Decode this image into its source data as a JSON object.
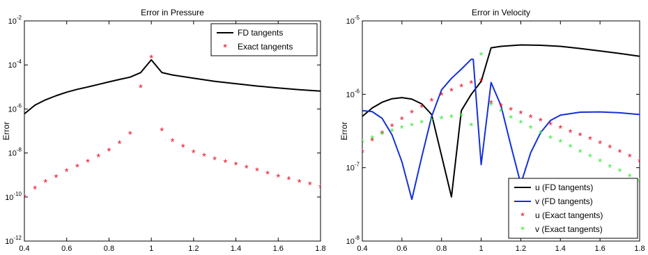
{
  "chart_data": [
    {
      "type": "line",
      "title": "Error in Pressure",
      "xlabel": "",
      "ylabel": "Error",
      "xlim": [
        0.4,
        1.8
      ],
      "ylim": [
        1e-12,
        0.01
      ],
      "yscale": "log",
      "grid": false,
      "legend_position": "top-right",
      "x_ticks": [
        "0.4",
        "0.6",
        "0.8",
        "1",
        "1.2",
        "1.4",
        "1.6",
        "1.8"
      ],
      "y_ticks": [
        {
          "base": "10",
          "exp": "-12"
        },
        {
          "base": "10",
          "exp": "-10"
        },
        {
          "base": "10",
          "exp": "-8"
        },
        {
          "base": "10",
          "exp": "-6"
        },
        {
          "base": "10",
          "exp": "-4"
        },
        {
          "base": "10",
          "exp": "-2"
        }
      ],
      "series": [
        {
          "name": "FD tangents",
          "style": "line",
          "color": "#000000",
          "x": [
            0.4,
            0.45,
            0.5,
            0.55,
            0.6,
            0.65,
            0.7,
            0.75,
            0.8,
            0.85,
            0.9,
            0.95,
            1.0,
            1.05,
            1.1,
            1.2,
            1.3,
            1.4,
            1.5,
            1.6,
            1.7,
            1.8
          ],
          "y": [
            6e-07,
            1.5e-06,
            2.6e-06,
            4e-06,
            5.8e-06,
            7.8e-06,
            1e-05,
            1.3e-05,
            1.7e-05,
            2.2e-05,
            2.8e-05,
            4.5e-05,
            0.00017,
            4.5e-05,
            3.5e-05,
            2.5e-05,
            1.8e-05,
            1.4e-05,
            1.1e-05,
            9e-06,
            7.5e-06,
            6.5e-06
          ]
        },
        {
          "name": "Exact tangents",
          "style": "marker",
          "color": "#e8102a",
          "x": [
            0.4,
            0.45,
            0.5,
            0.55,
            0.6,
            0.65,
            0.7,
            0.75,
            0.8,
            0.85,
            0.9,
            0.95,
            1.0,
            1.05,
            1.1,
            1.15,
            1.2,
            1.25,
            1.3,
            1.35,
            1.4,
            1.45,
            1.5,
            1.55,
            1.6,
            1.65,
            1.7,
            1.75,
            1.8
          ],
          "y": [
            1e-10,
            2.3e-10,
            4.5e-10,
            7.5e-10,
            1.4e-09,
            2.3e-09,
            3.8e-09,
            6.5e-09,
            1.2e-08,
            2.6e-08,
            7e-08,
            9e-06,
            0.0002,
            1e-07,
            3.2e-08,
            1.8e-08,
            1e-08,
            7e-09,
            4.8e-09,
            3.6e-09,
            2.8e-09,
            2e-09,
            1.5e-09,
            1.1e-09,
            8e-10,
            6e-10,
            4.5e-10,
            3.5e-10,
            2.6e-10
          ]
        }
      ]
    },
    {
      "type": "line",
      "title": "Error in Velocity",
      "xlabel": "",
      "ylabel": "Error",
      "xlim": [
        0.4,
        1.8
      ],
      "ylim": [
        1e-08,
        1e-05
      ],
      "yscale": "log",
      "grid": false,
      "legend_position": "bottom-right",
      "x_ticks": [
        "0.4",
        "0.6",
        "0.8",
        "1",
        "1.2",
        "1.4",
        "1.6",
        "1.8"
      ],
      "y_ticks": [
        {
          "base": "10",
          "exp": "-8"
        },
        {
          "base": "10",
          "exp": "-7"
        },
        {
          "base": "10",
          "exp": "-6"
        },
        {
          "base": "10",
          "exp": "-5"
        }
      ],
      "series": [
        {
          "name": "u (FD tangents)",
          "style": "line",
          "color": "#000000",
          "x": [
            0.4,
            0.45,
            0.5,
            0.55,
            0.6,
            0.65,
            0.7,
            0.75,
            0.85,
            0.9,
            0.95,
            1.0,
            1.05,
            1.1,
            1.2,
            1.3,
            1.4,
            1.5,
            1.6,
            1.7,
            1.8
          ],
          "y": [
            5e-07,
            6.5e-07,
            7.8e-07,
            8.7e-07,
            9e-07,
            8.6e-07,
            7.4e-07,
            5.3e-07,
            4e-08,
            6e-07,
            1e-06,
            1.5e-06,
            4.3e-06,
            4.5e-06,
            4.7e-06,
            4.65e-06,
            4.5e-06,
            4.2e-06,
            3.9e-06,
            3.6e-06,
            3.3e-06
          ]
        },
        {
          "name": "v (FD tangents)",
          "style": "line",
          "color": "#1430d8",
          "x": [
            0.4,
            0.45,
            0.5,
            0.55,
            0.6,
            0.65,
            0.7,
            0.75,
            0.8,
            0.85,
            0.9,
            0.95,
            0.96,
            1.0,
            1.05,
            1.1,
            1.15,
            1.2,
            1.25,
            1.3,
            1.35,
            1.4,
            1.5,
            1.6,
            1.7,
            1.8
          ],
          "y": [
            6e-07,
            5.8e-07,
            4.7e-07,
            2.8e-07,
            1.2e-07,
            3.7e-08,
            1.4e-07,
            5e-07,
            1.15e-06,
            1.65e-06,
            2.2e-06,
            3e-06,
            3e-06,
            1.1e-07,
            1.45e-06,
            7e-07,
            2e-07,
            6e-08,
            1.6e-07,
            3e-07,
            4.4e-07,
            5.2e-07,
            5.7e-07,
            5.75e-07,
            5.6e-07,
            5.3e-07
          ]
        },
        {
          "name": "u (Exact tangents)",
          "style": "marker",
          "color": "#e8102a",
          "x": [
            0.4,
            0.45,
            0.5,
            0.55,
            0.6,
            0.65,
            0.7,
            0.75,
            0.8,
            0.85,
            0.9,
            0.95,
            1.0,
            1.05,
            1.1,
            1.15,
            1.2,
            1.25,
            1.3,
            1.35,
            1.4,
            1.45,
            1.5,
            1.55,
            1.6,
            1.65,
            1.7,
            1.75,
            1.8
          ],
          "y": [
            1.6e-07,
            2.3e-07,
            2.9e-07,
            3.6e-07,
            4.5e-07,
            5.5e-07,
            6.6e-07,
            8e-07,
            9.6e-07,
            1.1e-06,
            1.25e-06,
            1.4e-06,
            1.5e-06,
            7.5e-07,
            6.8e-07,
            6e-07,
            5.4e-07,
            4.8e-07,
            4.3e-07,
            3.8e-07,
            3.4e-07,
            3e-07,
            2.7e-07,
            2.4e-07,
            2.1e-07,
            1.85e-07,
            1.6e-07,
            1.4e-07,
            1.2e-07
          ]
        },
        {
          "name": "v (Exact tangents)",
          "style": "marker",
          "color": "#3ee83e",
          "x": [
            0.4,
            0.45,
            0.5,
            0.55,
            0.6,
            0.65,
            0.7,
            0.75,
            0.8,
            0.85,
            0.9,
            0.95,
            1.0,
            1.05,
            1.1,
            1.15,
            1.2,
            1.25,
            1.3,
            1.35,
            1.4,
            1.45,
            1.5,
            1.55,
            1.6,
            1.65,
            1.7,
            1.75,
            1.8
          ],
          "y": [
            2.2e-07,
            2.5e-07,
            2.8e-07,
            3.1e-07,
            3.4e-07,
            3.7e-07,
            4e-07,
            4.3e-07,
            4.6e-07,
            4.8e-07,
            5e-07,
            3.7e-07,
            3.4e-06,
            7e-07,
            5.8e-07,
            4.7e-07,
            4e-07,
            3.4e-07,
            2.9e-07,
            2.5e-07,
            2.2e-07,
            1.9e-07,
            1.6e-07,
            1.4e-07,
            1.2e-07,
            1e-07,
            8.8e-08,
            7.5e-08,
            6.5e-08
          ]
        }
      ]
    }
  ]
}
